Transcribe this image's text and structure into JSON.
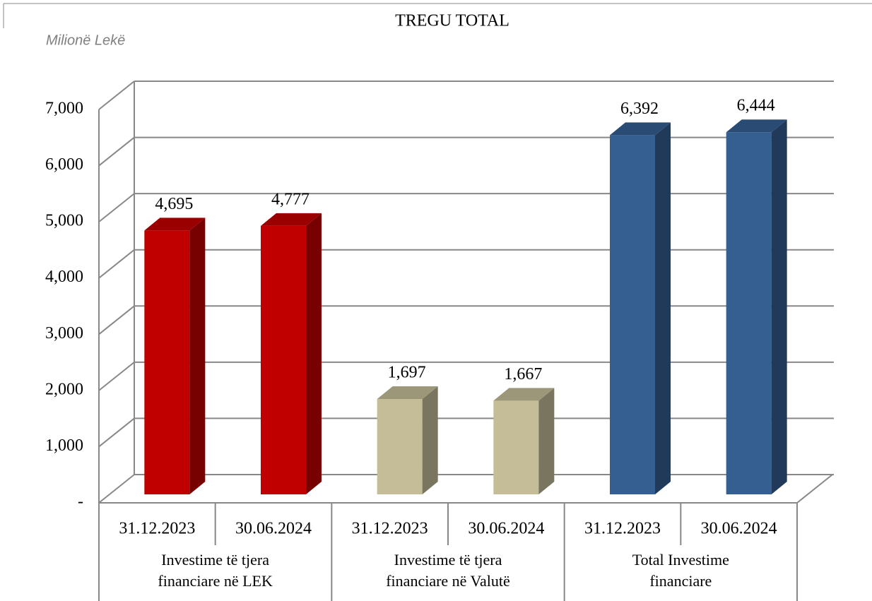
{
  "chart_data": {
    "type": "bar3d",
    "title": "TREGU TOTAL",
    "y_label": "Milionë Lekë",
    "categories": [
      "31.12.2023",
      "30.06.2024",
      "31.12.2023",
      "30.06.2024",
      "31.12.2023",
      "30.06.2024"
    ],
    "groups": [
      "Investime të tjera financiare në LEK",
      "Investime të tjera financiare në Valutë",
      "Total Investime financiare"
    ],
    "values": [
      4695,
      4777,
      1697,
      1667,
      6392,
      6444
    ],
    "value_labels": [
      "4,695",
      "4,777",
      "1,697",
      "1,667",
      "6,392",
      "6,444"
    ],
    "colors": [
      "#c00000",
      "#c00000",
      "#c4bd97",
      "#c4bd97",
      "#355e91",
      "#355e91"
    ],
    "ylim": [
      0,
      7000
    ],
    "yticks": [
      {
        "value": 0,
        "label": "-"
      },
      {
        "value": 1000,
        "label": "1,000"
      },
      {
        "value": 2000,
        "label": "2,000"
      },
      {
        "value": 3000,
        "label": "3,000"
      },
      {
        "value": 4000,
        "label": "4,000"
      },
      {
        "value": 5000,
        "label": "5,000"
      },
      {
        "value": 6000,
        "label": "6,000"
      },
      {
        "value": 7000,
        "label": "7,000"
      }
    ],
    "grid": true
  }
}
